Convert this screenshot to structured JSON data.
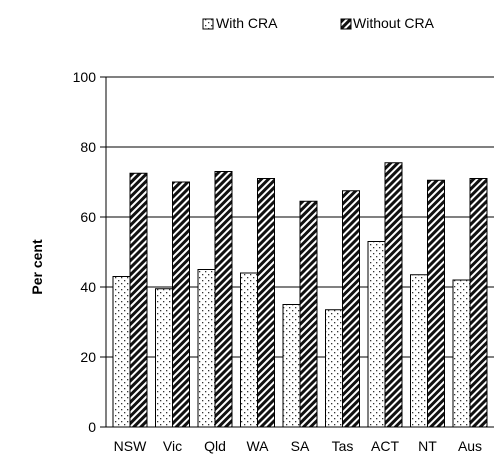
{
  "chart_data": {
    "type": "bar",
    "categories": [
      "NSW",
      "Vic",
      "Qld",
      "WA",
      "SA",
      "Tas",
      "ACT",
      "NT",
      "Aus"
    ],
    "series": [
      {
        "name": "With CRA",
        "values": [
          43,
          39.5,
          45,
          44,
          35,
          33.5,
          53,
          43.5,
          42
        ]
      },
      {
        "name": "Without CRA",
        "values": [
          72.5,
          70,
          73,
          71,
          64.5,
          67.5,
          75.5,
          70.5,
          71
        ]
      }
    ],
    "ylabel": "Per cent",
    "ylim": [
      0,
      100
    ],
    "yticks": [
      0,
      20,
      40,
      60,
      80,
      100
    ],
    "grid": false,
    "legend_position": "top"
  }
}
